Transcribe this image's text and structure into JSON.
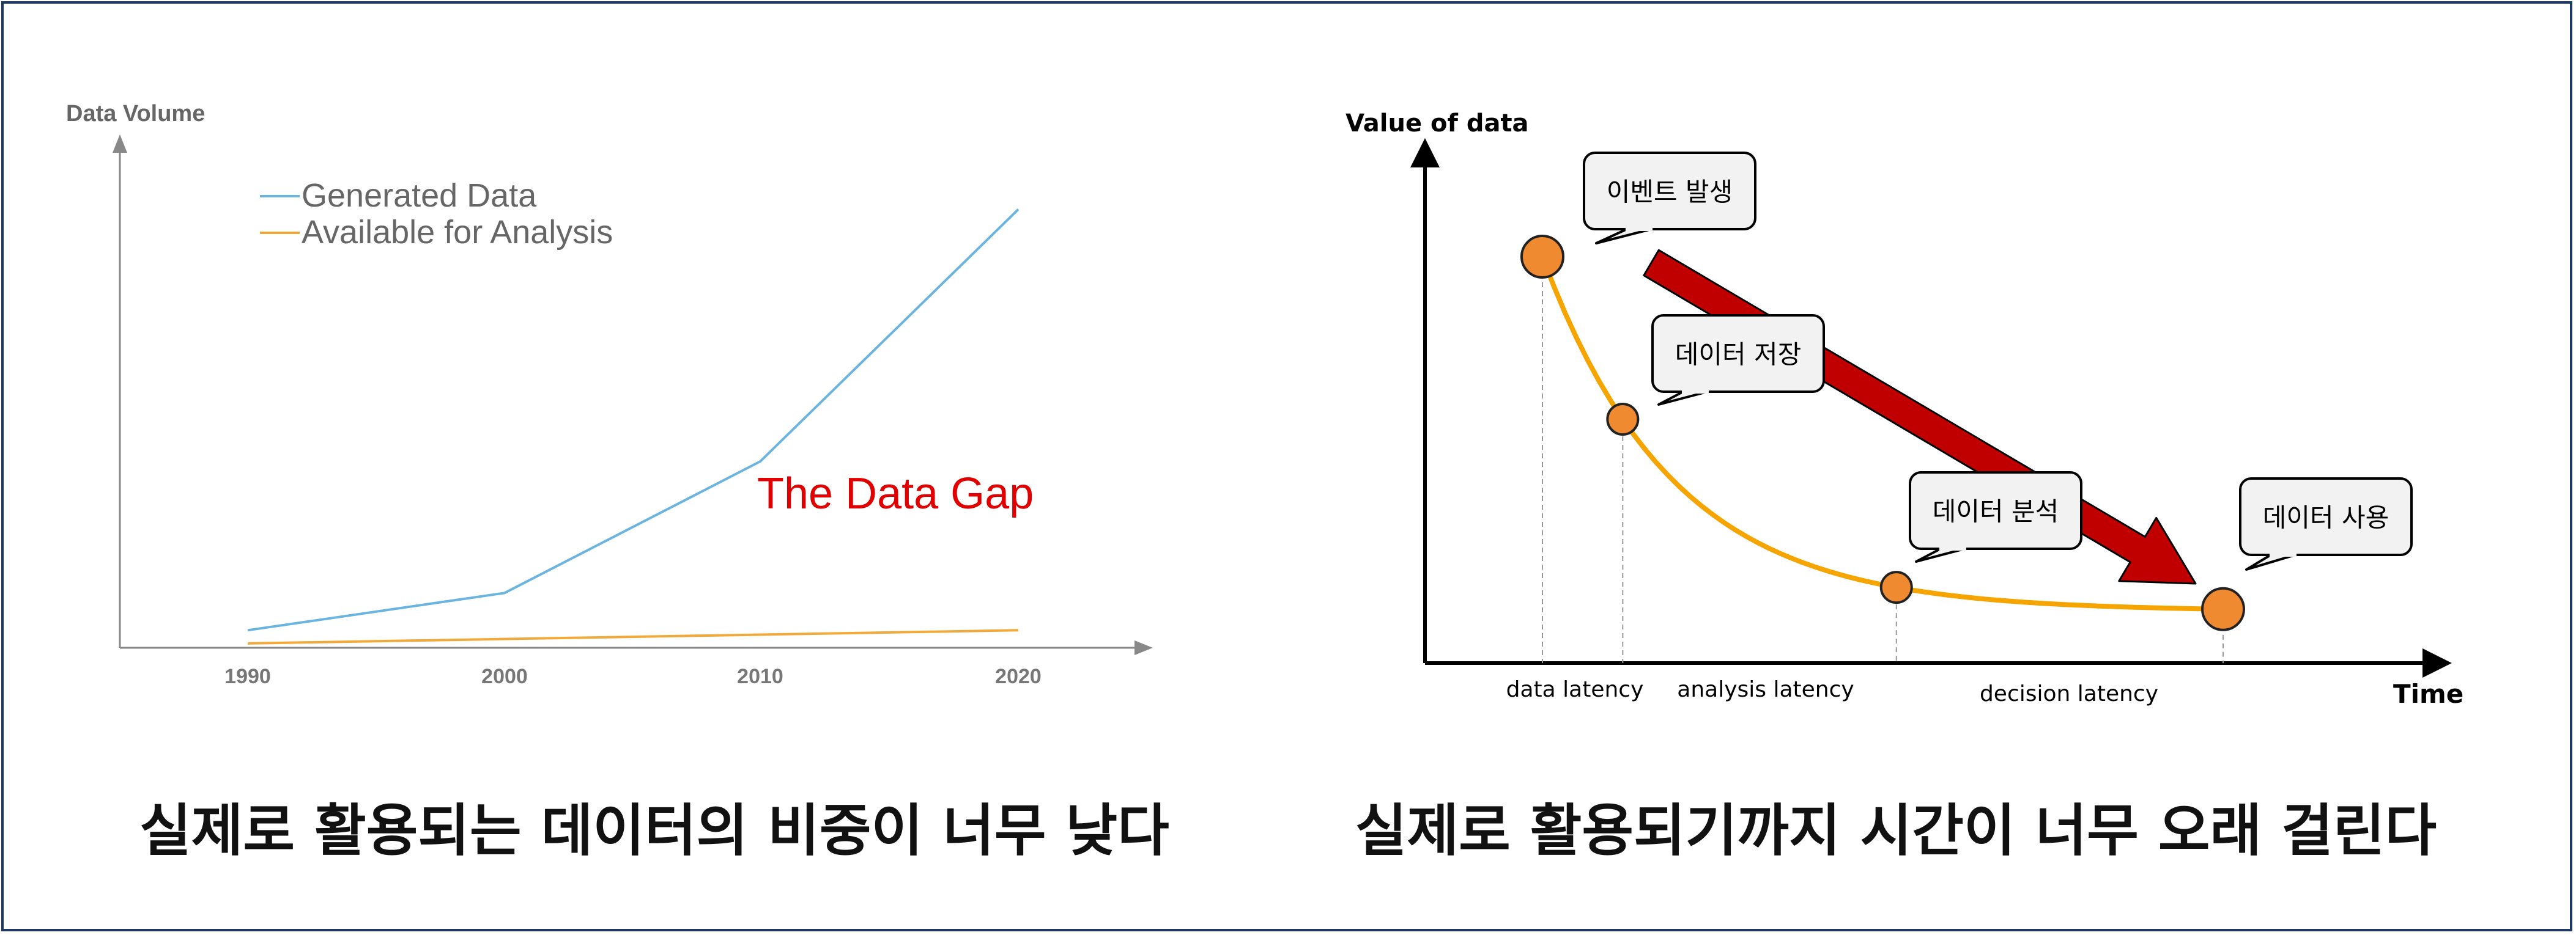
{
  "chart_data": [
    {
      "type": "line",
      "ylabel": "Data Volume",
      "categories": [
        "1990",
        "2000",
        "2010",
        "2020"
      ],
      "series": [
        {
          "name": "Generated Data",
          "color": "#6cb4e0",
          "values": [
            8,
            25,
            85,
            200
          ]
        },
        {
          "name": "Available for Analysis",
          "color": "#f2a93b",
          "values": [
            2,
            4,
            6,
            8
          ]
        }
      ],
      "ylim": [
        0,
        230
      ],
      "annotations": [
        {
          "text": "The Data Gap",
          "color": "#e00000"
        }
      ],
      "grid": false,
      "legend": "top-left"
    },
    {
      "type": "line",
      "ylabel": "Value of data",
      "xlabel": "Time",
      "curve": {
        "color": "#f5a400",
        "decay": 5.2
      },
      "events": [
        {
          "label": "이벤트 발생",
          "t": 0.0
        },
        {
          "label": "데이터 저장",
          "t": 0.118
        },
        {
          "label": "데이터 분석",
          "t": 0.52
        },
        {
          "label": "데이터 사용",
          "t": 1.0
        }
      ],
      "latency_labels": [
        "data latency",
        "analysis latency",
        "decision latency"
      ],
      "marker_color": "#f08a30",
      "arrow_color": "#c00000"
    }
  ],
  "captions": {
    "left": "실제로 활용되는 데이터의 비중이 너무 낮다",
    "right": "실제로 활용되기까지 시간이 너무 오래 걸린다"
  }
}
